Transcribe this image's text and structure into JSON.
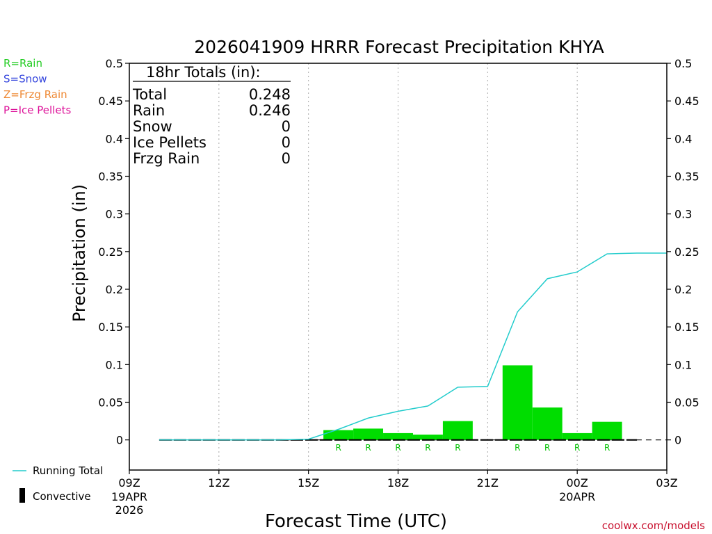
{
  "chart_data": {
    "type": "bar",
    "title": "2026041909 HRRR Forecast Precipitation KHYA",
    "xlabel": "Forecast Time (UTC)",
    "ylabel": "Precipitation (in)",
    "ylim": [
      -0.04,
      0.5
    ],
    "yticks": [
      0,
      0.05,
      0.1,
      0.15,
      0.2,
      0.25,
      0.3,
      0.35,
      0.4,
      0.45,
      0.5
    ],
    "ytick_labels": [
      "0",
      "0.05",
      "0.1",
      "0.15",
      "0.2",
      "0.25",
      "0.3",
      "0.35",
      "0.4",
      "0.45",
      "0.5"
    ],
    "xlim_hours": [
      9,
      27
    ],
    "xticks": [
      {
        "hour": 9,
        "label": "09Z",
        "sub": [
          "19APR",
          "2026"
        ]
      },
      {
        "hour": 12,
        "label": "12Z",
        "sub": []
      },
      {
        "hour": 15,
        "label": "15Z",
        "sub": []
      },
      {
        "hour": 18,
        "label": "18Z",
        "sub": []
      },
      {
        "hour": 21,
        "label": "21Z",
        "sub": []
      },
      {
        "hour": 24,
        "label": "00Z",
        "sub": [
          "20APR"
        ]
      },
      {
        "hour": 27,
        "label": "03Z",
        "sub": []
      }
    ],
    "grid": "vertical dotted",
    "bars": [
      {
        "start_hour": 15.5,
        "end_hour": 16.5,
        "value": 0.013,
        "ptype": "R"
      },
      {
        "start_hour": 16.5,
        "end_hour": 17.5,
        "value": 0.015,
        "ptype": "R"
      },
      {
        "start_hour": 17.5,
        "end_hour": 18.5,
        "value": 0.009,
        "ptype": "R"
      },
      {
        "start_hour": 18.5,
        "end_hour": 19.5,
        "value": 0.007,
        "ptype": "R"
      },
      {
        "start_hour": 19.5,
        "end_hour": 20.5,
        "value": 0.025,
        "ptype": "R"
      },
      {
        "start_hour": 21.5,
        "end_hour": 22.5,
        "value": 0.099,
        "ptype": "R"
      },
      {
        "start_hour": 22.5,
        "end_hour": 23.5,
        "value": 0.043,
        "ptype": "R"
      },
      {
        "start_hour": 23.5,
        "end_hour": 24.5,
        "value": 0.009,
        "ptype": "R"
      },
      {
        "start_hour": 24.5,
        "end_hour": 25.5,
        "value": 0.024,
        "ptype": "R"
      }
    ],
    "running_total": {
      "name": "Running Total",
      "hours": [
        10,
        11,
        12,
        13,
        14,
        15,
        16,
        17,
        18,
        19,
        20,
        21,
        22,
        23,
        24,
        25,
        26,
        27
      ],
      "values": [
        0,
        0,
        0,
        0,
        0,
        0.001,
        0.014,
        0.029,
        0.038,
        0.045,
        0.07,
        0.071,
        0.17,
        0.214,
        0.223,
        0.247,
        0.248,
        0.248
      ]
    },
    "convective": {
      "name": "Convective",
      "start_hour": 10,
      "end_hour": 26,
      "value": 0
    },
    "totals_box": {
      "heading": "18hr Totals (in):",
      "rows": [
        {
          "label": "Total",
          "value": "0.248"
        },
        {
          "label": "Rain",
          "value": "0.246"
        },
        {
          "label": "Snow",
          "value": "0"
        },
        {
          "label": "Ice Pellets",
          "value": "0"
        },
        {
          "label": "Frzg Rain",
          "value": "0"
        }
      ]
    },
    "ptype_legend": [
      {
        "text": "R=Rain",
        "color": "#22cc22"
      },
      {
        "text": "S=Snow",
        "color": "#3344dd"
      },
      {
        "text": "Z=Frzg Rain",
        "color": "#ee8833"
      },
      {
        "text": "P=Ice Pellets",
        "color": "#dd1199"
      }
    ],
    "colors": {
      "rain_bar": "#00dd00",
      "running_total": "#22cccc",
      "convective": "#000000",
      "grid": "#aaaaaa"
    }
  },
  "credit": "coolwx.com/models"
}
